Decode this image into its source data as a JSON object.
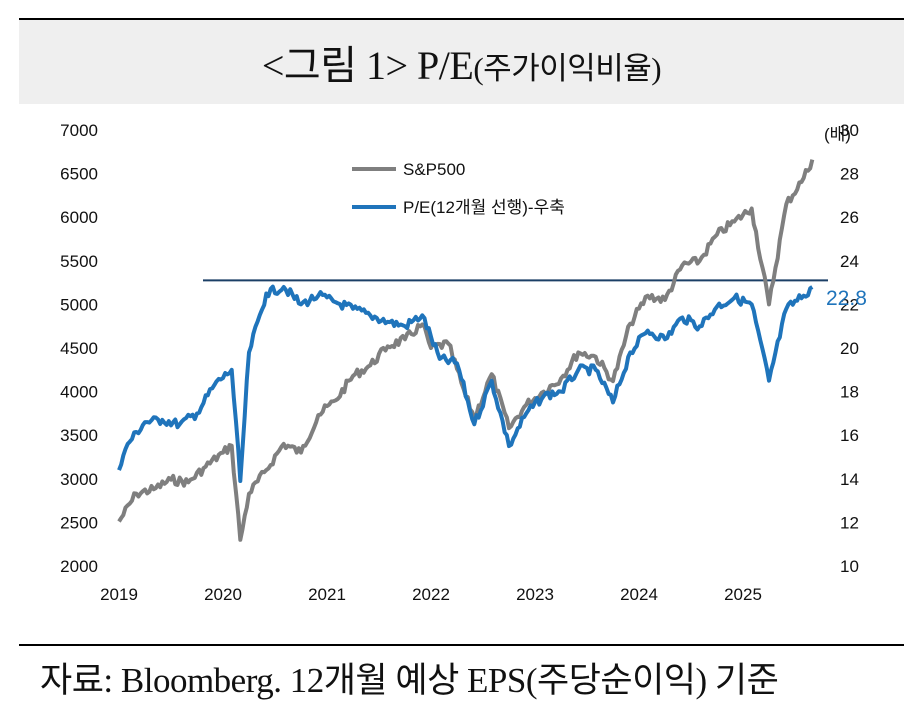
{
  "title": {
    "main": "<그림 1> P/E",
    "paren": "(주가이익비율)"
  },
  "source": "자료: Bloomberg. 12개월 예상 EPS(주당순이익) 기준",
  "chart_data": {
    "type": "line",
    "x_ticks": [
      "2019",
      "2020",
      "2021",
      "2022",
      "2023",
      "2024",
      "2025"
    ],
    "y_left": {
      "ticks": [
        "7000",
        "6500",
        "6000",
        "5500",
        "5000",
        "4500",
        "4000",
        "3500",
        "3000",
        "2500",
        "2000"
      ],
      "ylim": [
        2000,
        7000
      ]
    },
    "y_right": {
      "unit": "(배)",
      "ticks": [
        "30",
        "28",
        "26",
        "24",
        "22",
        "20",
        "18",
        "16",
        "14",
        "12",
        "10"
      ],
      "ylim": [
        10,
        30
      ]
    },
    "grid": false,
    "legend_position": "top-center",
    "annotation": "22.8",
    "reference_line_right": 23.1,
    "series": [
      {
        "name": "S&P500",
        "axis": "left",
        "color": "#7f7f7f",
        "points": [
          [
            "2019-01",
            2510
          ],
          [
            "2019-03",
            2830
          ],
          [
            "2019-05",
            2880
          ],
          [
            "2019-07",
            2990
          ],
          [
            "2019-09",
            2960
          ],
          [
            "2019-11",
            3140
          ],
          [
            "2020-01",
            3300
          ],
          [
            "2020-02",
            3380
          ],
          [
            "2020-03",
            2300
          ],
          [
            "2020-04",
            2830
          ],
          [
            "2020-06",
            3100
          ],
          [
            "2020-08",
            3400
          ],
          [
            "2020-10",
            3300
          ],
          [
            "2020-12",
            3730
          ],
          [
            "2021-02",
            3900
          ],
          [
            "2021-04",
            4180
          ],
          [
            "2021-06",
            4300
          ],
          [
            "2021-08",
            4520
          ],
          [
            "2021-10",
            4600
          ],
          [
            "2021-12",
            4770
          ],
          [
            "2022-01",
            4500
          ],
          [
            "2022-03",
            4550
          ],
          [
            "2022-05",
            3950
          ],
          [
            "2022-06",
            3700
          ],
          [
            "2022-08",
            4200
          ],
          [
            "2022-10",
            3580
          ],
          [
            "2022-12",
            3850
          ],
          [
            "2023-02",
            4000
          ],
          [
            "2023-04",
            4150
          ],
          [
            "2023-06",
            4450
          ],
          [
            "2023-08",
            4400
          ],
          [
            "2023-10",
            4120
          ],
          [
            "2023-12",
            4780
          ],
          [
            "2024-02",
            5100
          ],
          [
            "2024-04",
            5050
          ],
          [
            "2024-06",
            5450
          ],
          [
            "2024-08",
            5500
          ],
          [
            "2024-10",
            5800
          ],
          [
            "2024-12",
            5950
          ],
          [
            "2025-02",
            6100
          ],
          [
            "2025-04",
            5000
          ],
          [
            "2025-06",
            6150
          ],
          [
            "2025-08",
            6450
          ],
          [
            "2025-09",
            6660
          ]
        ]
      },
      {
        "name": "P/E(12개월 선행)-우축",
        "axis": "right",
        "color": "#1f74bb",
        "points": [
          [
            "2019-01",
            14.4
          ],
          [
            "2019-02",
            15.6
          ],
          [
            "2019-04",
            16.6
          ],
          [
            "2019-06",
            16.7
          ],
          [
            "2019-08",
            16.5
          ],
          [
            "2019-10",
            17.0
          ],
          [
            "2019-12",
            18.3
          ],
          [
            "2020-02",
            19.0
          ],
          [
            "2020-03",
            13.9
          ],
          [
            "2020-04",
            19.8
          ],
          [
            "2020-06",
            22.5
          ],
          [
            "2020-08",
            22.8
          ],
          [
            "2020-10",
            22.0
          ],
          [
            "2020-12",
            22.4
          ],
          [
            "2021-02",
            22.1
          ],
          [
            "2021-04",
            21.8
          ],
          [
            "2021-06",
            21.5
          ],
          [
            "2021-08",
            21.2
          ],
          [
            "2021-10",
            21.0
          ],
          [
            "2021-12",
            21.5
          ],
          [
            "2022-02",
            19.5
          ],
          [
            "2022-04",
            19.3
          ],
          [
            "2022-06",
            16.5
          ],
          [
            "2022-08",
            18.5
          ],
          [
            "2022-10",
            15.5
          ],
          [
            "2022-12",
            17.0
          ],
          [
            "2023-02",
            17.8
          ],
          [
            "2023-04",
            18.0
          ],
          [
            "2023-06",
            19.0
          ],
          [
            "2023-08",
            19.0
          ],
          [
            "2023-10",
            17.5
          ],
          [
            "2023-12",
            19.8
          ],
          [
            "2024-02",
            20.8
          ],
          [
            "2024-04",
            20.4
          ],
          [
            "2024-06",
            21.4
          ],
          [
            "2024-08",
            21.0
          ],
          [
            "2024-10",
            21.9
          ],
          [
            "2024-12",
            22.3
          ],
          [
            "2025-02",
            22.0
          ],
          [
            "2025-04",
            18.5
          ],
          [
            "2025-06",
            21.8
          ],
          [
            "2025-08",
            22.4
          ],
          [
            "2025-09",
            22.8
          ]
        ]
      }
    ]
  }
}
